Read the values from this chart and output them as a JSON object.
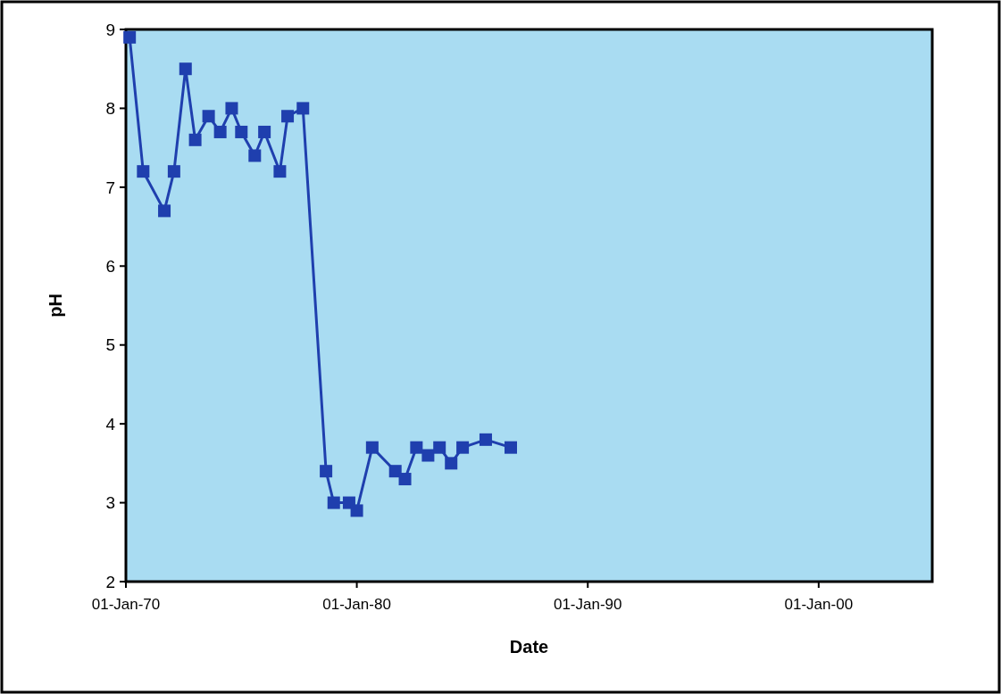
{
  "chart_data": {
    "type": "line",
    "xlabel": "Date",
    "ylabel": "pH",
    "x": [
      "1970-03",
      "1970-10",
      "1971-09",
      "1972-02",
      "1972-08",
      "1973-01",
      "1973-08",
      "1974-02",
      "1974-08",
      "1975-01",
      "1975-08",
      "1976-01",
      "1976-09",
      "1977-01",
      "1977-09",
      "1978-09",
      "1979-01",
      "1979-09",
      "1980-01",
      "1980-09",
      "1981-09",
      "1982-02",
      "1982-08",
      "1983-02",
      "1983-08",
      "1984-02",
      "1984-08",
      "1985-08",
      "1986-09"
    ],
    "series": [
      {
        "color": "#1f3fae",
        "values": [
          8.9,
          7.2,
          6.7,
          7.2,
          8.5,
          7.6,
          7.9,
          7.7,
          8.0,
          7.7,
          7.4,
          7.7,
          7.2,
          7.9,
          8.0,
          3.4,
          3.0,
          3.0,
          2.9,
          3.7,
          3.4,
          3.3,
          3.7,
          3.6,
          3.7,
          3.5,
          3.7,
          3.8,
          3.7
        ]
      }
    ],
    "xlim": [
      "1970-01-01",
      "2004-12-01"
    ],
    "xticks": [
      {
        "value": "1970-01-01",
        "label": "01-Jan-70"
      },
      {
        "value": "1980-01-01",
        "label": "01-Jan-80"
      },
      {
        "value": "1990-01-01",
        "label": "01-Jan-90"
      },
      {
        "value": "2000-01-01",
        "label": "01-Jan-00"
      }
    ],
    "ylim": [
      2,
      9
    ],
    "yticks": [
      2,
      3,
      4,
      5,
      6,
      7,
      8,
      9
    ],
    "grid": false,
    "marker": "square",
    "line_style": "solid"
  }
}
